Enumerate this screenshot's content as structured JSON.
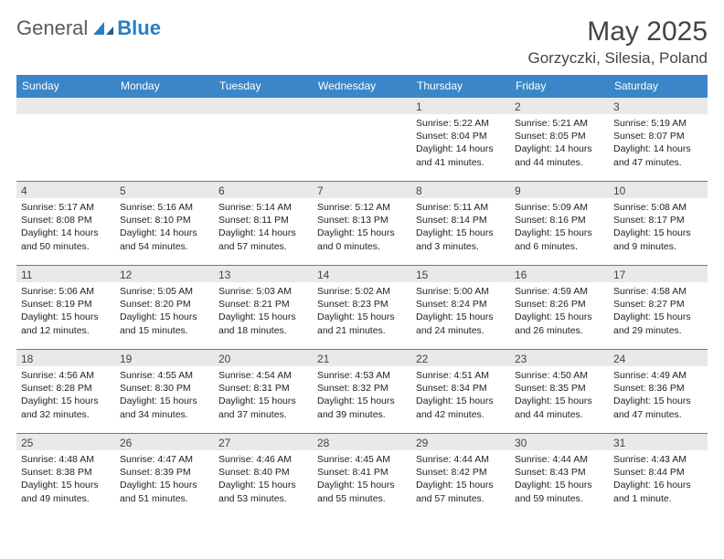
{
  "brand": {
    "part1": "General",
    "part2": "Blue"
  },
  "title": "May 2025",
  "location": "Gorzyczki, Silesia, Poland",
  "style": {
    "header_bg": "#3a86c8",
    "header_text": "#ffffff",
    "daynum_bg": "#e9e9e9",
    "border_color": "#3a86c8",
    "text_color": "#222222",
    "title_color": "#444444",
    "month_fontsize": 30,
    "location_fontsize": 17,
    "dayhdr_fontsize": 12,
    "cell_fontsize": 10.5
  },
  "weekdays": [
    "Sunday",
    "Monday",
    "Tuesday",
    "Wednesday",
    "Thursday",
    "Friday",
    "Saturday"
  ],
  "grid": [
    [
      null,
      null,
      null,
      null,
      {
        "n": "1",
        "sr": "5:22 AM",
        "ss": "8:04 PM",
        "dl": "14 hours and 41 minutes."
      },
      {
        "n": "2",
        "sr": "5:21 AM",
        "ss": "8:05 PM",
        "dl": "14 hours and 44 minutes."
      },
      {
        "n": "3",
        "sr": "5:19 AM",
        "ss": "8:07 PM",
        "dl": "14 hours and 47 minutes."
      }
    ],
    [
      {
        "n": "4",
        "sr": "5:17 AM",
        "ss": "8:08 PM",
        "dl": "14 hours and 50 minutes."
      },
      {
        "n": "5",
        "sr": "5:16 AM",
        "ss": "8:10 PM",
        "dl": "14 hours and 54 minutes."
      },
      {
        "n": "6",
        "sr": "5:14 AM",
        "ss": "8:11 PM",
        "dl": "14 hours and 57 minutes."
      },
      {
        "n": "7",
        "sr": "5:12 AM",
        "ss": "8:13 PM",
        "dl": "15 hours and 0 minutes."
      },
      {
        "n": "8",
        "sr": "5:11 AM",
        "ss": "8:14 PM",
        "dl": "15 hours and 3 minutes."
      },
      {
        "n": "9",
        "sr": "5:09 AM",
        "ss": "8:16 PM",
        "dl": "15 hours and 6 minutes."
      },
      {
        "n": "10",
        "sr": "5:08 AM",
        "ss": "8:17 PM",
        "dl": "15 hours and 9 minutes."
      }
    ],
    [
      {
        "n": "11",
        "sr": "5:06 AM",
        "ss": "8:19 PM",
        "dl": "15 hours and 12 minutes."
      },
      {
        "n": "12",
        "sr": "5:05 AM",
        "ss": "8:20 PM",
        "dl": "15 hours and 15 minutes."
      },
      {
        "n": "13",
        "sr": "5:03 AM",
        "ss": "8:21 PM",
        "dl": "15 hours and 18 minutes."
      },
      {
        "n": "14",
        "sr": "5:02 AM",
        "ss": "8:23 PM",
        "dl": "15 hours and 21 minutes."
      },
      {
        "n": "15",
        "sr": "5:00 AM",
        "ss": "8:24 PM",
        "dl": "15 hours and 24 minutes."
      },
      {
        "n": "16",
        "sr": "4:59 AM",
        "ss": "8:26 PM",
        "dl": "15 hours and 26 minutes."
      },
      {
        "n": "17",
        "sr": "4:58 AM",
        "ss": "8:27 PM",
        "dl": "15 hours and 29 minutes."
      }
    ],
    [
      {
        "n": "18",
        "sr": "4:56 AM",
        "ss": "8:28 PM",
        "dl": "15 hours and 32 minutes."
      },
      {
        "n": "19",
        "sr": "4:55 AM",
        "ss": "8:30 PM",
        "dl": "15 hours and 34 minutes."
      },
      {
        "n": "20",
        "sr": "4:54 AM",
        "ss": "8:31 PM",
        "dl": "15 hours and 37 minutes."
      },
      {
        "n": "21",
        "sr": "4:53 AM",
        "ss": "8:32 PM",
        "dl": "15 hours and 39 minutes."
      },
      {
        "n": "22",
        "sr": "4:51 AM",
        "ss": "8:34 PM",
        "dl": "15 hours and 42 minutes."
      },
      {
        "n": "23",
        "sr": "4:50 AM",
        "ss": "8:35 PM",
        "dl": "15 hours and 44 minutes."
      },
      {
        "n": "24",
        "sr": "4:49 AM",
        "ss": "8:36 PM",
        "dl": "15 hours and 47 minutes."
      }
    ],
    [
      {
        "n": "25",
        "sr": "4:48 AM",
        "ss": "8:38 PM",
        "dl": "15 hours and 49 minutes."
      },
      {
        "n": "26",
        "sr": "4:47 AM",
        "ss": "8:39 PM",
        "dl": "15 hours and 51 minutes."
      },
      {
        "n": "27",
        "sr": "4:46 AM",
        "ss": "8:40 PM",
        "dl": "15 hours and 53 minutes."
      },
      {
        "n": "28",
        "sr": "4:45 AM",
        "ss": "8:41 PM",
        "dl": "15 hours and 55 minutes."
      },
      {
        "n": "29",
        "sr": "4:44 AM",
        "ss": "8:42 PM",
        "dl": "15 hours and 57 minutes."
      },
      {
        "n": "30",
        "sr": "4:44 AM",
        "ss": "8:43 PM",
        "dl": "15 hours and 59 minutes."
      },
      {
        "n": "31",
        "sr": "4:43 AM",
        "ss": "8:44 PM",
        "dl": "16 hours and 1 minute."
      }
    ]
  ],
  "labels": {
    "sunrise": "Sunrise:",
    "sunset": "Sunset:",
    "daylight": "Daylight:"
  }
}
